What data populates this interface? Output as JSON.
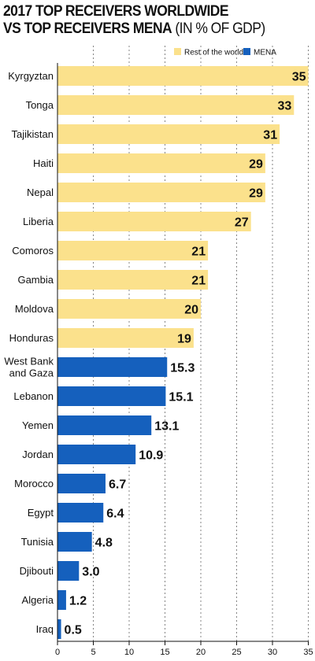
{
  "title_line1": "2017 TOP RECEIVERS WORLDWIDE",
  "title_line2_bold": "VS TOP RECEIVERS MENA",
  "title_line2_light": " (IN % OF GDP)",
  "chart_data": {
    "type": "bar",
    "orientation": "horizontal",
    "title": "2017 TOP RECEIVERS WORLDWIDE VS TOP RECEIVERS MENA (IN % OF GDP)",
    "legend": {
      "placement": "top-right",
      "entries": [
        {
          "name": "Rest of the world",
          "color": "#FBE18C"
        },
        {
          "name": "MENA",
          "color": "#1560BD"
        }
      ]
    },
    "xlim": [
      0,
      35
    ],
    "xticks": [
      0,
      5,
      10,
      15,
      20,
      25,
      30,
      35
    ],
    "grid": "vertical dashed",
    "categories": [
      "Kyrgyztan",
      "Tonga",
      "Tajikistan",
      "Haiti",
      "Nepal",
      "Liberia",
      "Comoros",
      "Gambia",
      "Moldova",
      "Honduras",
      "West Bank\nand Gaza",
      "Lebanon",
      "Yemen",
      "Jordan",
      "Morocco",
      "Egypt",
      "Tunisia",
      "Djibouti",
      "Algeria",
      "Iraq"
    ],
    "values": [
      35,
      33,
      31,
      29,
      29,
      27,
      21,
      21,
      20,
      19,
      15.3,
      15.1,
      13.1,
      10.9,
      6.7,
      6.4,
      4.8,
      3.0,
      1.2,
      0.5
    ],
    "value_labels": [
      "35",
      "33",
      "31",
      "29",
      "29",
      "27",
      "21",
      "21",
      "20",
      "19",
      "15.3",
      "15.1",
      "13.1",
      "10.9",
      "6.7",
      "6.4",
      "4.8",
      "3.0",
      "1.2",
      "0.5"
    ],
    "groups": [
      "Rest of the world",
      "Rest of the world",
      "Rest of the world",
      "Rest of the world",
      "Rest of the world",
      "Rest of the world",
      "Rest of the world",
      "Rest of the world",
      "Rest of the world",
      "Rest of the world",
      "MENA",
      "MENA",
      "MENA",
      "MENA",
      "MENA",
      "MENA",
      "MENA",
      "MENA",
      "MENA",
      "MENA"
    ]
  }
}
